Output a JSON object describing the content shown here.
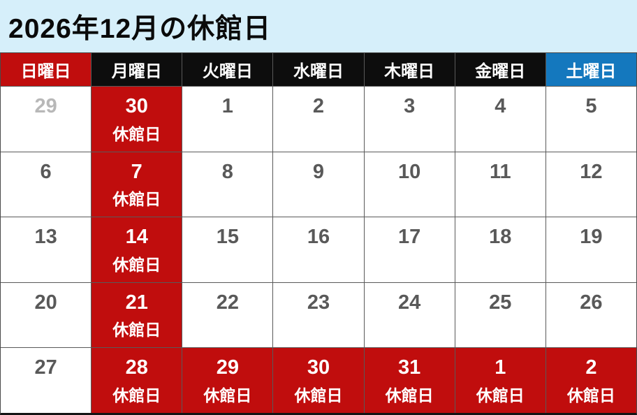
{
  "title": "2026年12月の休館日",
  "colors": {
    "title_background": "#d6effa",
    "header_weekday_background": "#0d0d0d",
    "header_sunday_background": "#c00d0d",
    "header_saturday_background": "#1478be",
    "closed_cell_background": "#c00d0d",
    "day_number": "#595959",
    "muted_day_number": "#b8b8b8",
    "header_text": "#ffffff",
    "closed_text": "#ffffff",
    "gridline": "#595959"
  },
  "calendar": {
    "closed_label": "休館日",
    "day_headers": [
      {
        "label": "日曜日",
        "type": "sunday"
      },
      {
        "label": "月曜日",
        "type": "weekday"
      },
      {
        "label": "火曜日",
        "type": "weekday"
      },
      {
        "label": "水曜日",
        "type": "weekday"
      },
      {
        "label": "木曜日",
        "type": "weekday"
      },
      {
        "label": "金曜日",
        "type": "weekday"
      },
      {
        "label": "土曜日",
        "type": "saturday"
      }
    ],
    "weeks": [
      [
        {
          "day": "29",
          "closed": false,
          "muted": true
        },
        {
          "day": "30",
          "closed": true,
          "muted": false
        },
        {
          "day": "1",
          "closed": false,
          "muted": false
        },
        {
          "day": "2",
          "closed": false,
          "muted": false
        },
        {
          "day": "3",
          "closed": false,
          "muted": false
        },
        {
          "day": "4",
          "closed": false,
          "muted": false
        },
        {
          "day": "5",
          "closed": false,
          "muted": false
        }
      ],
      [
        {
          "day": "6",
          "closed": false,
          "muted": false
        },
        {
          "day": "7",
          "closed": true,
          "muted": false
        },
        {
          "day": "8",
          "closed": false,
          "muted": false
        },
        {
          "day": "9",
          "closed": false,
          "muted": false
        },
        {
          "day": "10",
          "closed": false,
          "muted": false
        },
        {
          "day": "11",
          "closed": false,
          "muted": false
        },
        {
          "day": "12",
          "closed": false,
          "muted": false
        }
      ],
      [
        {
          "day": "13",
          "closed": false,
          "muted": false
        },
        {
          "day": "14",
          "closed": true,
          "muted": false
        },
        {
          "day": "15",
          "closed": false,
          "muted": false
        },
        {
          "day": "16",
          "closed": false,
          "muted": false
        },
        {
          "day": "17",
          "closed": false,
          "muted": false
        },
        {
          "day": "18",
          "closed": false,
          "muted": false
        },
        {
          "day": "19",
          "closed": false,
          "muted": false
        }
      ],
      [
        {
          "day": "20",
          "closed": false,
          "muted": false
        },
        {
          "day": "21",
          "closed": true,
          "muted": false
        },
        {
          "day": "22",
          "closed": false,
          "muted": false
        },
        {
          "day": "23",
          "closed": false,
          "muted": false
        },
        {
          "day": "24",
          "closed": false,
          "muted": false
        },
        {
          "day": "25",
          "closed": false,
          "muted": false
        },
        {
          "day": "26",
          "closed": false,
          "muted": false
        }
      ],
      [
        {
          "day": "27",
          "closed": false,
          "muted": false
        },
        {
          "day": "28",
          "closed": true,
          "muted": false
        },
        {
          "day": "29",
          "closed": true,
          "muted": false
        },
        {
          "day": "30",
          "closed": true,
          "muted": false
        },
        {
          "day": "31",
          "closed": true,
          "muted": false
        },
        {
          "day": "1",
          "closed": true,
          "muted": false
        },
        {
          "day": "2",
          "closed": true,
          "muted": false
        }
      ]
    ]
  }
}
